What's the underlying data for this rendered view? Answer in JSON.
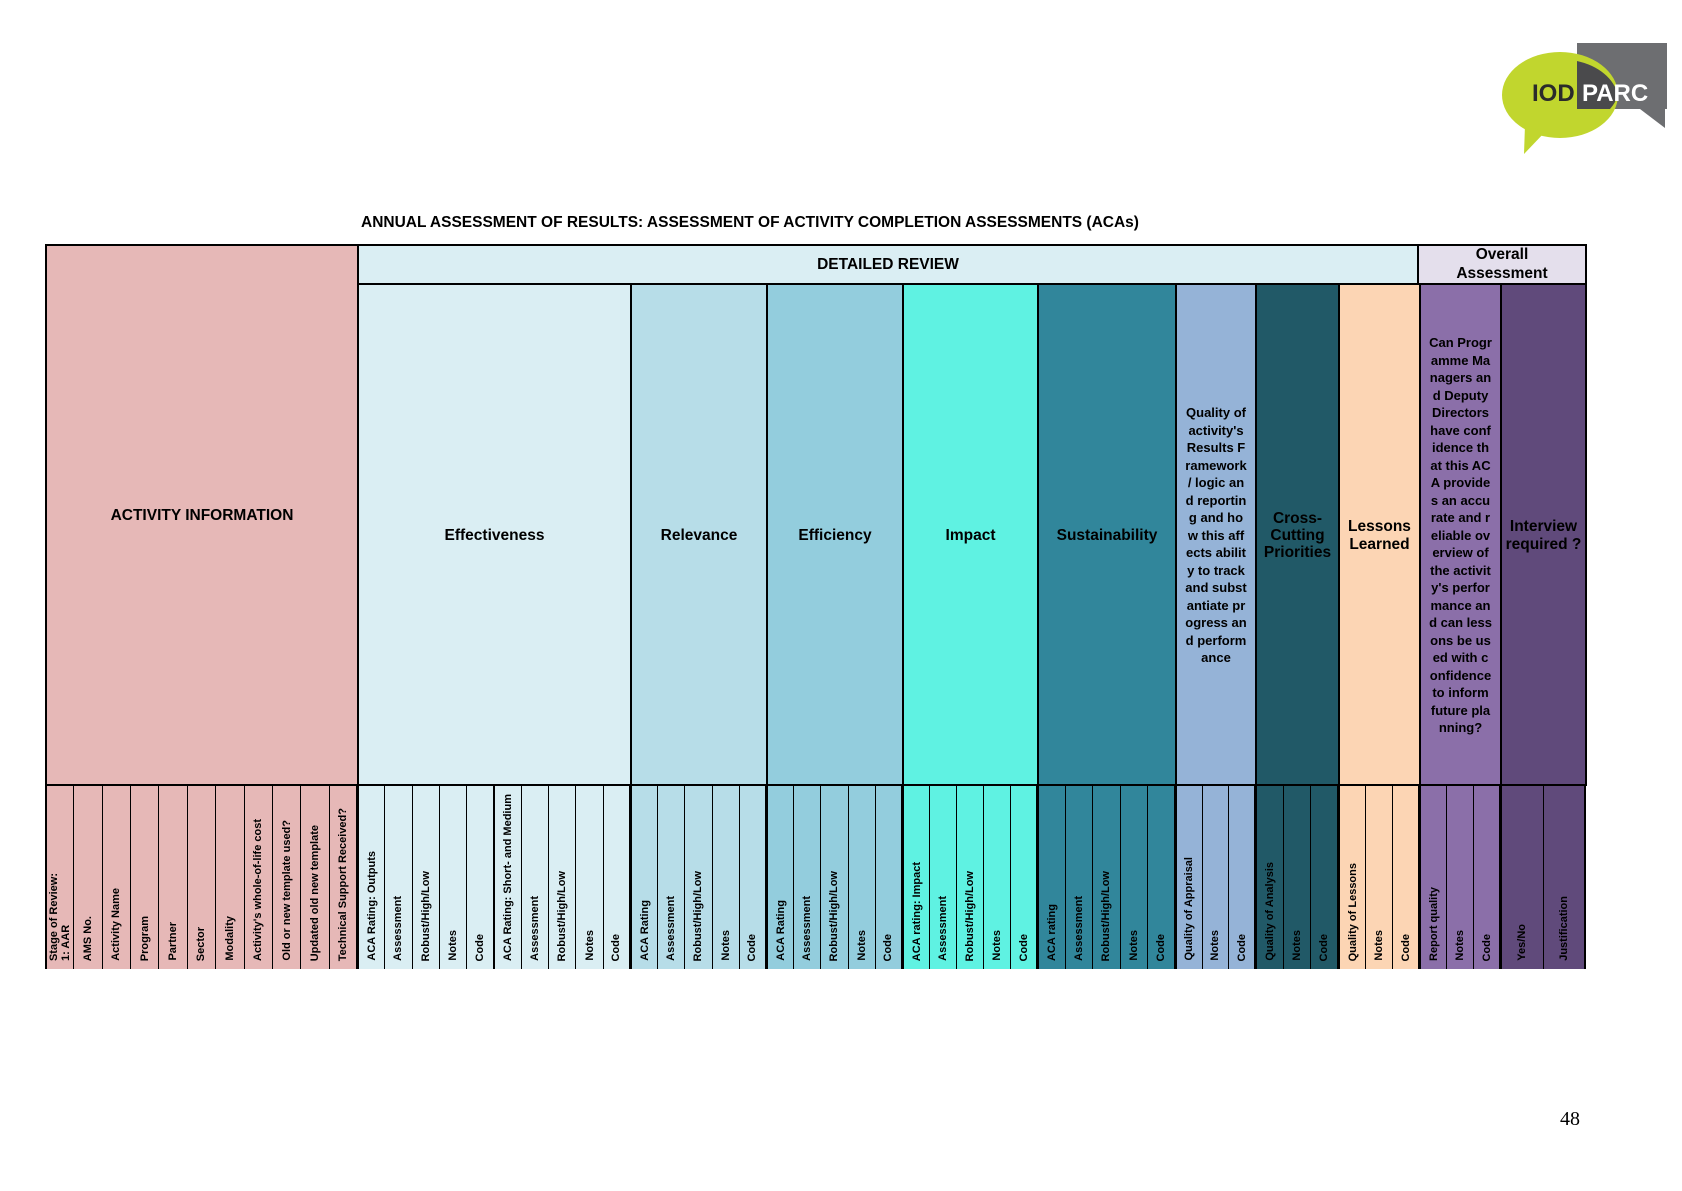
{
  "logo": {
    "part1": "IOD",
    "part2": "PARC"
  },
  "title": "ANNUAL ASSESSMENT OF RESULTS: ASSESSMENT OF ACTIVITY COMPLETION ASSESSMENTS (ACAs)",
  "sections": {
    "activity_info": "ACTIVITY INFORMATION",
    "detailed_review": "DETAILED REVIEW",
    "overall": "Overall Assessment"
  },
  "colors": {
    "activity_info": "#e6b8b7",
    "detailed_review": "#daeef3",
    "overall": "#e4dfec"
  },
  "groups": [
    {
      "label": "ACTIVITY INFORMATION",
      "color": "#e6b8b7",
      "text": "#000",
      "columns": [
        "Stage of Review:\n1: AAR",
        "AMS No.",
        "Activity Name",
        "Program",
        "Partner",
        "Sector",
        "Modality",
        "Activity's whole-of-life cost",
        "Old or new template used?",
        "Updated old new template",
        "Technical Support Received?"
      ]
    },
    {
      "label": "Effectiveness",
      "color": "#daeef3",
      "text": "#000",
      "columns": [
        "ACA Rating: Outputs",
        "Assessment",
        "Robust/High/Low",
        "Notes",
        "Code",
        "ACA Rating: Short- and Medium",
        "Assessment",
        "Robust/High/Low",
        "Notes",
        "Code"
      ]
    },
    {
      "label": "Relevance",
      "color": "#b7dde8",
      "text": "#000",
      "columns": [
        "ACA Rating",
        "Assessment",
        "Robust/High/Low",
        "Notes",
        "Code"
      ]
    },
    {
      "label": "Efficiency",
      "color": "#93cddd",
      "text": "#000",
      "columns": [
        "ACA Rating",
        "Assessment",
        "Robust/High/Low",
        "Notes",
        "Code"
      ]
    },
    {
      "label": "Impact",
      "color": "#5ff2e2",
      "text": "#000",
      "columns": [
        "ACA rating: Impact",
        "Assessment",
        "Robust/High/Low",
        "Notes",
        "Code"
      ]
    },
    {
      "label": "Sustainability",
      "color": "#31869b",
      "text": "#000",
      "columns": [
        "ACA rating",
        "Assessment",
        "Robust/High/Low",
        "Notes",
        "Code"
      ]
    },
    {
      "label": "Quality of activity's Results Framework / logic and reporting and how this affects ability to track and substantiate progress and performance",
      "color": "#95b3d7",
      "text": "#000",
      "tall": true,
      "columns": [
        "Quality of Appraisal",
        "Notes",
        "Code"
      ]
    },
    {
      "label": "Cross-Cutting Priorities",
      "color": "#215967",
      "text": "#000",
      "columns": [
        "Quality of Analysis",
        "Notes",
        "Code"
      ]
    },
    {
      "label": "Lessons Learned",
      "color": "#fcd5b4",
      "text": "#000",
      "columns": [
        "Quality of Lessons",
        "Notes",
        "Code"
      ]
    },
    {
      "label": "Can Programme Managers and Deputy Directors have confidence that this ACA provides an accurate and reliable overview of the activity's performance and can lessons be used with confidence to inform future planning?",
      "color": "#8b6fa9",
      "text": "#000",
      "tall": true,
      "columns": [
        "Report quality",
        "Notes",
        "Code"
      ]
    },
    {
      "label": "Interview required ?",
      "color": "#604a7b",
      "text": "#000",
      "columns": [
        "Yes/No",
        "Justification"
      ]
    }
  ],
  "page_number": "48"
}
